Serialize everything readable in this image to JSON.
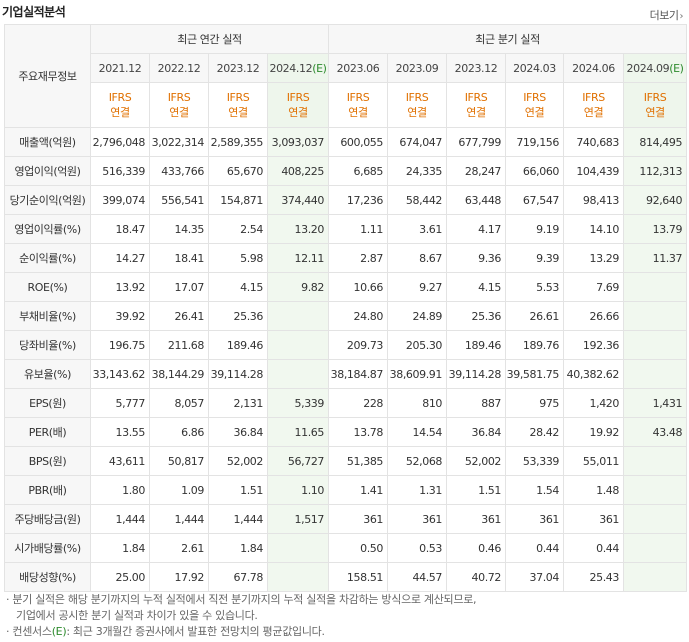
{
  "title": "기업실적분석",
  "more_label": "더보기",
  "more_arrow": "›",
  "row_header": "주요재무정보",
  "groups": {
    "annual": "최근 연간 실적",
    "quarter": "최근 분기 실적"
  },
  "periods": [
    {
      "label": "2021.12",
      "est": ""
    },
    {
      "label": "2022.12",
      "est": ""
    },
    {
      "label": "2023.12",
      "est": ""
    },
    {
      "label": "2024.12",
      "est": "(E)"
    },
    {
      "label": "2023.06",
      "est": ""
    },
    {
      "label": "2023.09",
      "est": ""
    },
    {
      "label": "2023.12",
      "est": ""
    },
    {
      "label": "2024.03",
      "est": ""
    },
    {
      "label": "2024.06",
      "est": ""
    },
    {
      "label": "2024.09",
      "est": "(E)"
    }
  ],
  "acct_line1": "IFRS",
  "acct_line2": "연결",
  "rows": [
    {
      "label": "매출액(억원)",
      "values": [
        "2,796,048",
        "3,022,314",
        "2,589,355",
        "3,093,037",
        "600,055",
        "674,047",
        "677,799",
        "719,156",
        "740,683",
        "814,495"
      ]
    },
    {
      "label": "영업이익(억원)",
      "values": [
        "516,339",
        "433,766",
        "65,670",
        "408,225",
        "6,685",
        "24,335",
        "28,247",
        "66,060",
        "104,439",
        "112,313"
      ]
    },
    {
      "label": "당기순이익(억원)",
      "values": [
        "399,074",
        "556,541",
        "154,871",
        "374,440",
        "17,236",
        "58,442",
        "63,448",
        "67,547",
        "98,413",
        "92,640"
      ]
    },
    {
      "label": "영업이익률(%)",
      "values": [
        "18.47",
        "14.35",
        "2.54",
        "13.20",
        "1.11",
        "3.61",
        "4.17",
        "9.19",
        "14.10",
        "13.79"
      ]
    },
    {
      "label": "순이익률(%)",
      "values": [
        "14.27",
        "18.41",
        "5.98",
        "12.11",
        "2.87",
        "8.67",
        "9.36",
        "9.39",
        "13.29",
        "11.37"
      ]
    },
    {
      "label": "ROE(%)",
      "values": [
        "13.92",
        "17.07",
        "4.15",
        "9.82",
        "10.66",
        "9.27",
        "4.15",
        "5.53",
        "7.69",
        ""
      ]
    },
    {
      "label": "부채비율(%)",
      "values": [
        "39.92",
        "26.41",
        "25.36",
        "",
        "24.80",
        "24.89",
        "25.36",
        "26.61",
        "26.66",
        ""
      ]
    },
    {
      "label": "당좌비율(%)",
      "values": [
        "196.75",
        "211.68",
        "189.46",
        "",
        "209.73",
        "205.30",
        "189.46",
        "189.76",
        "192.36",
        ""
      ]
    },
    {
      "label": "유보율(%)",
      "values": [
        "33,143.62",
        "38,144.29",
        "39,114.28",
        "",
        "38,184.87",
        "38,609.91",
        "39,114.28",
        "39,581.75",
        "40,382.62",
        ""
      ]
    },
    {
      "label": "EPS(원)",
      "values": [
        "5,777",
        "8,057",
        "2,131",
        "5,339",
        "228",
        "810",
        "887",
        "975",
        "1,420",
        "1,431"
      ]
    },
    {
      "label": "PER(배)",
      "values": [
        "13.55",
        "6.86",
        "36.84",
        "11.65",
        "13.78",
        "14.54",
        "36.84",
        "28.42",
        "19.92",
        "43.48"
      ]
    },
    {
      "label": "BPS(원)",
      "values": [
        "43,611",
        "50,817",
        "52,002",
        "56,727",
        "51,385",
        "52,068",
        "52,002",
        "53,339",
        "55,011",
        ""
      ]
    },
    {
      "label": "PBR(배)",
      "values": [
        "1.80",
        "1.09",
        "1.51",
        "1.10",
        "1.41",
        "1.31",
        "1.51",
        "1.54",
        "1.48",
        ""
      ]
    },
    {
      "label": "주당배당금(원)",
      "values": [
        "1,444",
        "1,444",
        "1,444",
        "1,517",
        "361",
        "361",
        "361",
        "361",
        "361",
        ""
      ]
    },
    {
      "label": "시가배당률(%)",
      "values": [
        "1.84",
        "2.61",
        "1.84",
        "",
        "0.50",
        "0.53",
        "0.46",
        "0.44",
        "0.44",
        ""
      ]
    },
    {
      "label": "배당성향(%)",
      "values": [
        "25.00",
        "17.92",
        "67.78",
        "",
        "158.51",
        "44.57",
        "40.72",
        "37.04",
        "25.43",
        ""
      ]
    }
  ],
  "group_starts": [
    3,
    6,
    9,
    13
  ],
  "notes": {
    "line1": "· 분기 실적은 해당 분기까지의 누적 실적에서 직전 분기까지의 누적 실적을 차감하는 방식으로 계산되므로,",
    "line2": "기업에서 공시한 분기 실적과 차이가 있을 수 있습니다.",
    "line3_pre": "· 컨센서스",
    "line3_e": "(E)",
    "line3_post": ": 최근 3개월간 증권사에서 발표한 전망치의 평균값입니다."
  },
  "colors": {
    "estimate_bg": "#f1f8ef",
    "acct_text": "#e07000",
    "est_text": "#2e8b2e"
  }
}
